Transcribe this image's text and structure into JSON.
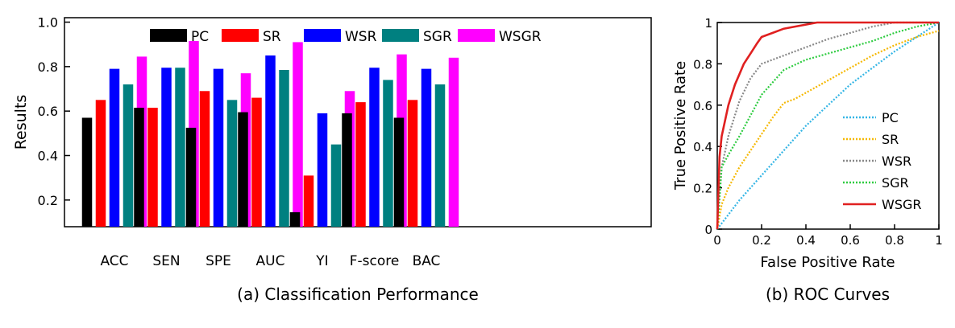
{
  "chart_data": [
    {
      "type": "bar",
      "title": "",
      "caption": "(a) Classification Performance",
      "xlabel": "",
      "ylabel": "Results",
      "ylim": [
        0.08,
        1.02
      ],
      "yticks": [
        "0.2",
        "0.4",
        "0.6",
        "0.8",
        "1.0"
      ],
      "grid": false,
      "legend_position": "top",
      "categories": [
        "ACC",
        "SEN",
        "SPE",
        "AUC",
        "YI",
        "F-score",
        "BAC"
      ],
      "series": [
        {
          "name": "PC",
          "color": "#000000",
          "values": [
            0.57,
            0.615,
            0.525,
            0.595,
            0.145,
            0.59,
            0.57
          ]
        },
        {
          "name": "SR",
          "color": "#ff0000",
          "values": [
            0.65,
            0.615,
            0.69,
            0.66,
            0.31,
            0.64,
            0.65
          ]
        },
        {
          "name": "WSR",
          "color": "#0000ff",
          "values": [
            0.79,
            0.795,
            0.79,
            0.85,
            0.59,
            0.795,
            0.79
          ]
        },
        {
          "name": "SGR",
          "color": "#008080",
          "values": [
            0.72,
            0.795,
            0.65,
            0.785,
            0.45,
            0.74,
            0.72
          ]
        },
        {
          "name": "WSGR",
          "color": "#ff00ff",
          "values": [
            0.845,
            0.915,
            0.77,
            0.91,
            0.69,
            0.855,
            0.84
          ]
        }
      ]
    },
    {
      "type": "line",
      "title": "",
      "caption": "(b) ROC Curves",
      "xlabel": "False Positive Rate",
      "ylabel": "True Positive Rate",
      "xlim": [
        0,
        1
      ],
      "ylim": [
        0,
        1
      ],
      "xticks": [
        "0",
        "0.2",
        "0.4",
        "0.6",
        "0.8",
        "1"
      ],
      "yticks": [
        "0",
        "0.2",
        "0.4",
        "0.6",
        "0.8",
        "1"
      ],
      "grid": false,
      "legend_position": "bottom-right",
      "series": [
        {
          "name": "PC",
          "color": "#33b5e5",
          "style": "dotted",
          "x": [
            0,
            0.05,
            0.1,
            0.2,
            0.3,
            0.4,
            0.5,
            0.6,
            0.7,
            0.8,
            0.9,
            1.0
          ],
          "y": [
            0,
            0.07,
            0.14,
            0.26,
            0.38,
            0.5,
            0.6,
            0.7,
            0.78,
            0.86,
            0.93,
            1.0
          ]
        },
        {
          "name": "SR",
          "color": "#f5b800",
          "style": "dotted",
          "x": [
            0,
            0.02,
            0.05,
            0.1,
            0.15,
            0.2,
            0.25,
            0.3,
            0.35,
            0.4,
            0.5,
            0.6,
            0.7,
            0.8,
            0.9,
            1.0
          ],
          "y": [
            0,
            0.12,
            0.2,
            0.3,
            0.38,
            0.46,
            0.54,
            0.61,
            0.63,
            0.66,
            0.72,
            0.78,
            0.84,
            0.89,
            0.93,
            0.96
          ]
        },
        {
          "name": "WSR",
          "color": "#888888",
          "style": "dotted",
          "x": [
            0,
            0.02,
            0.05,
            0.1,
            0.15,
            0.2,
            0.3,
            0.4,
            0.5,
            0.6,
            0.7,
            0.8,
            0.9,
            1.0
          ],
          "y": [
            0,
            0.3,
            0.45,
            0.62,
            0.73,
            0.8,
            0.84,
            0.88,
            0.92,
            0.95,
            0.98,
            1.0,
            1.0,
            1.0
          ]
        },
        {
          "name": "SGR",
          "color": "#2ecc40",
          "style": "dotted",
          "x": [
            0,
            0.02,
            0.05,
            0.1,
            0.15,
            0.2,
            0.3,
            0.4,
            0.5,
            0.6,
            0.7,
            0.8,
            0.9,
            1.0
          ],
          "y": [
            0,
            0.3,
            0.36,
            0.45,
            0.55,
            0.65,
            0.77,
            0.82,
            0.85,
            0.88,
            0.91,
            0.95,
            0.98,
            1.0
          ]
        },
        {
          "name": "WSGR",
          "color": "#e02020",
          "style": "solid",
          "x": [
            0,
            0.01,
            0.02,
            0.05,
            0.08,
            0.1,
            0.12,
            0.15,
            0.18,
            0.2,
            0.25,
            0.3,
            0.35,
            0.4,
            0.45,
            0.5,
            0.6,
            0.8,
            1.0
          ],
          "y": [
            0,
            0.35,
            0.45,
            0.6,
            0.7,
            0.75,
            0.8,
            0.85,
            0.9,
            0.93,
            0.95,
            0.97,
            0.98,
            0.99,
            1.0,
            1.0,
            1.0,
            1.0,
            1.0
          ]
        }
      ]
    }
  ]
}
